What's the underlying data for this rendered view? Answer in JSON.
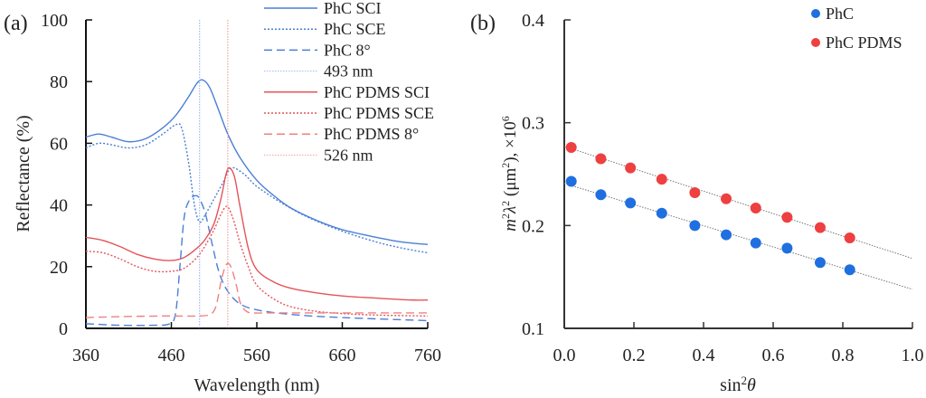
{
  "chart_data": [
    {
      "panel_label": "(a)",
      "type": "line",
      "title": "",
      "xlabel": "Wavelength (nm)",
      "ylabel": "Reflectance (%)",
      "xlim": [
        360,
        760
      ],
      "ylim": [
        0,
        100
      ],
      "xticks": [
        360,
        460,
        560,
        660,
        760
      ],
      "yticks": [
        0,
        20,
        40,
        60,
        80,
        100
      ],
      "legend_position": "top-right",
      "series": [
        {
          "name": "PhC SCI",
          "color": "#4a7fd6",
          "style": "solid",
          "x": [
            360,
            375,
            390,
            410,
            430,
            450,
            465,
            480,
            490,
            497,
            505,
            515,
            526,
            540,
            560,
            580,
            600,
            630,
            660,
            700,
            730,
            760
          ],
          "y": [
            62,
            63,
            62,
            60.5,
            61.5,
            65,
            69,
            75,
            79.5,
            80.5,
            78,
            71,
            63,
            55.5,
            48,
            43,
            39,
            35,
            32,
            29.5,
            28,
            27.2
          ]
        },
        {
          "name": "PhC SCE",
          "color": "#4a7fd6",
          "style": "dotted",
          "x": [
            360,
            375,
            390,
            410,
            430,
            450,
            465,
            472,
            480,
            487,
            493,
            500,
            510,
            520,
            530,
            545,
            560,
            590,
            620,
            660,
            700,
            730,
            760
          ],
          "y": [
            58.5,
            60,
            59.5,
            58.5,
            59.5,
            63,
            66,
            65,
            54,
            40,
            34.5,
            37,
            42,
            47,
            52,
            50,
            46,
            40.5,
            36,
            31.5,
            28,
            26,
            24.5
          ]
        },
        {
          "name": "PhC 8°",
          "color": "#4a7fd6",
          "style": "dashed",
          "x": [
            360,
            400,
            440,
            458,
            465,
            470,
            475,
            481,
            488,
            493,
            500,
            508,
            516,
            526,
            540,
            560,
            600,
            660,
            760
          ],
          "y": [
            1.5,
            1,
            1,
            1.5,
            5,
            20,
            36,
            41.5,
            43,
            42,
            37,
            27,
            18,
            12,
            8,
            6,
            4.5,
            3.5,
            2.5
          ]
        },
        {
          "name": "493 nm",
          "color": "#9fb8ef",
          "style": "dotted",
          "vline": 493
        },
        {
          "name": "PhC PDMS SCI",
          "color": "#e4545a",
          "style": "solid",
          "x": [
            360,
            380,
            400,
            420,
            440,
            460,
            475,
            490,
            500,
            510,
            518,
            524,
            528,
            534,
            540,
            550,
            560,
            580,
            600,
            630,
            660,
            700,
            740,
            760
          ],
          "y": [
            29.5,
            28.5,
            26.5,
            24,
            22.5,
            22,
            23,
            26,
            29,
            34,
            42,
            50,
            52,
            49,
            40,
            26,
            19,
            15,
            13,
            11.5,
            10.5,
            9.8,
            9.2,
            9.2
          ]
        },
        {
          "name": "PhC PDMS SCE",
          "color": "#e4545a",
          "style": "dotted",
          "x": [
            360,
            380,
            400,
            420,
            440,
            460,
            475,
            490,
            500,
            510,
            518,
            524,
            528,
            534,
            540,
            550,
            560,
            580,
            600,
            630,
            660,
            700,
            760
          ],
          "y": [
            25,
            24.5,
            22.5,
            20,
            18.5,
            18.5,
            19.5,
            23,
            27,
            32,
            37,
            39.5,
            38.5,
            34,
            28,
            20,
            14,
            9.5,
            7,
            5.5,
            4.8,
            4.3,
            4
          ]
        },
        {
          "name": "PhC PDMS 8°",
          "color": "#f08080",
          "style": "dashed",
          "x": [
            360,
            400,
            450,
            490,
            505,
            512,
            518,
            523,
            527,
            531,
            536,
            541,
            548,
            556,
            580,
            660,
            760
          ],
          "y": [
            3.5,
            3.8,
            4,
            4,
            4.5,
            7,
            15,
            20,
            21,
            19,
            14,
            8,
            5.5,
            5,
            5,
            5,
            5
          ]
        },
        {
          "name": "526 nm",
          "color": "#f0a0a0",
          "style": "dotted",
          "vline": 526
        }
      ]
    },
    {
      "panel_label": "(b)",
      "type": "scatter",
      "title": "",
      "xlabel": "sin²θ",
      "ylabel": "m²λ² (μm²), ×10⁶",
      "xlim": [
        0.0,
        1.0
      ],
      "ylim": [
        0.1,
        0.4
      ],
      "xticks": [
        "0.0",
        "0.2",
        "0.4",
        "0.6",
        "0.8",
        "1.0"
      ],
      "yticks": [
        "0.1",
        "0.2",
        "0.3",
        "0.4"
      ],
      "legend_position": "top-right",
      "series": [
        {
          "name": "PhC",
          "color": "#1f6fe0",
          "x": [
            0.02,
            0.105,
            0.19,
            0.28,
            0.375,
            0.465,
            0.55,
            0.64,
            0.735,
            0.82
          ],
          "y": [
            0.243,
            0.23,
            0.222,
            0.212,
            0.2,
            0.191,
            0.183,
            0.178,
            0.164,
            0.157
          ],
          "trendline": {
            "intercept": 0.241,
            "slope": -0.103
          }
        },
        {
          "name": "PhC PDMS",
          "color": "#ee4040",
          "x": [
            0.02,
            0.105,
            0.19,
            0.28,
            0.375,
            0.465,
            0.55,
            0.64,
            0.735,
            0.82
          ],
          "y": [
            0.276,
            0.265,
            0.256,
            0.245,
            0.232,
            0.226,
            0.217,
            0.208,
            0.198,
            0.188
          ],
          "trendline": {
            "intercept": 0.277,
            "slope": -0.109
          }
        }
      ]
    }
  ]
}
